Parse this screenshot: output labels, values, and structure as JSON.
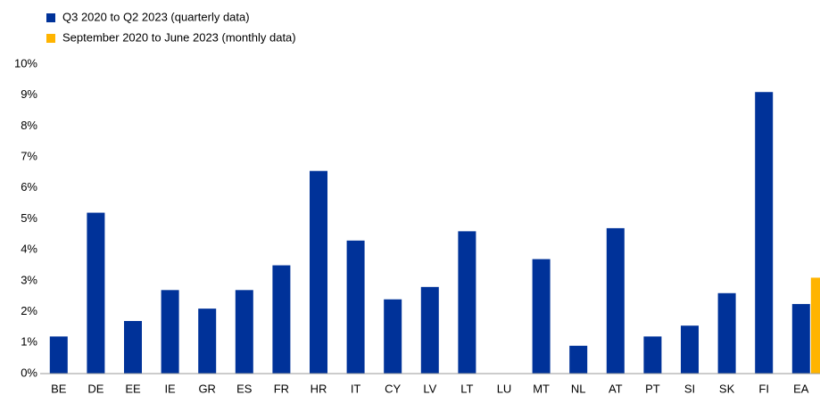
{
  "chart_data": {
    "type": "bar",
    "categories": [
      "BE",
      "DE",
      "EE",
      "IE",
      "GR",
      "ES",
      "FR",
      "HR",
      "IT",
      "CY",
      "LV",
      "LT",
      "LU",
      "MT",
      "NL",
      "AT",
      "PT",
      "SI",
      "SK",
      "FI",
      "EA"
    ],
    "series": [
      {
        "name": "Q3 2020 to Q2 2023 (quarterly data)",
        "color": "#003299",
        "values": [
          1.2,
          5.2,
          1.7,
          2.7,
          2.1,
          2.7,
          3.5,
          6.55,
          4.3,
          2.4,
          2.8,
          4.6,
          null,
          3.7,
          0.9,
          4.7,
          1.2,
          1.55,
          2.6,
          9.1,
          2.25
        ]
      },
      {
        "name": "September 2020 to June 2023 (monthly data)",
        "color": "#ffb400",
        "values": [
          null,
          null,
          null,
          null,
          null,
          null,
          null,
          null,
          null,
          null,
          null,
          null,
          null,
          null,
          null,
          null,
          null,
          null,
          null,
          null,
          3.1
        ]
      }
    ],
    "ylim": [
      0,
      10
    ],
    "yticks": [
      {
        "value": 0,
        "label": "0%"
      },
      {
        "value": 1,
        "label": "1%"
      },
      {
        "value": 2,
        "label": "2%"
      },
      {
        "value": 3,
        "label": "3%"
      },
      {
        "value": 4,
        "label": "4%"
      },
      {
        "value": 5,
        "label": "5%"
      },
      {
        "value": 6,
        "label": "6%"
      },
      {
        "value": 7,
        "label": "7%"
      },
      {
        "value": 8,
        "label": "8%"
      },
      {
        "value": 9,
        "label": "9%"
      },
      {
        "value": 10,
        "label": "10%"
      }
    ],
    "legend": "top-left"
  }
}
